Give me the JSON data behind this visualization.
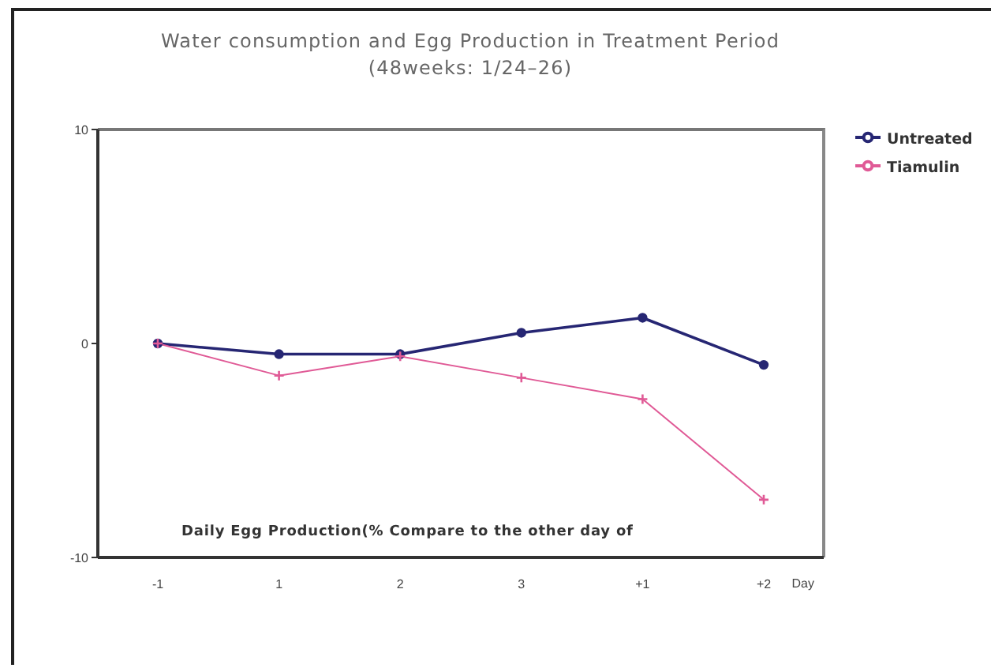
{
  "chart_data": {
    "type": "line",
    "title": "Water consumption and Egg Production in Treatment Period",
    "subtitle": "(48weeks: 1/24–26)",
    "xlabel": "Day",
    "categories": [
      "-1",
      "1",
      "2",
      "3",
      "+1",
      "+2"
    ],
    "series": [
      {
        "name": "Untreated",
        "color": "#262673",
        "marker": "circle",
        "values": [
          0,
          -0.5,
          -0.5,
          0.5,
          1.2,
          -1.0
        ]
      },
      {
        "name": "Tiamulin",
        "color": "#e05a96",
        "marker": "cross",
        "values": [
          0,
          -1.5,
          -0.6,
          -1.6,
          -2.6,
          -7.3
        ]
      }
    ],
    "ylim": [
      -10,
      10
    ],
    "yticks": [
      -10,
      0,
      10
    ],
    "legend": "top right",
    "annotations": [
      "Daily Egg Production(% Compare to the other day of"
    ]
  }
}
